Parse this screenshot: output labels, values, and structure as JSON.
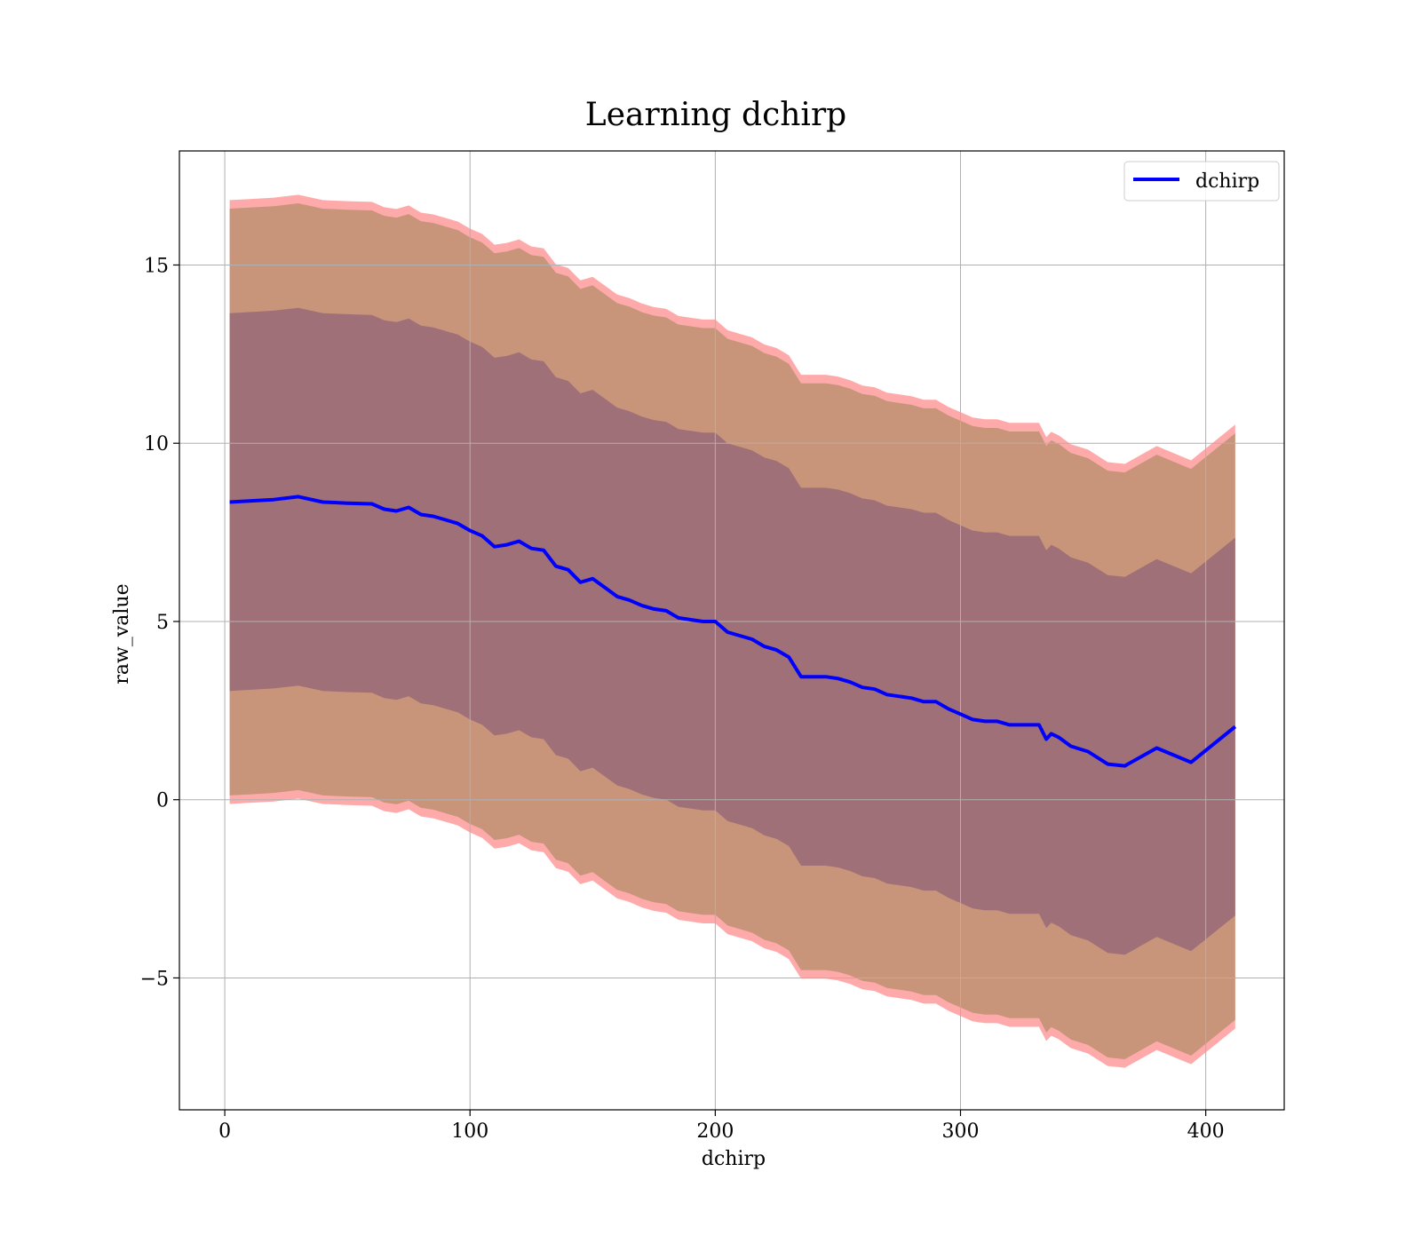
{
  "chart_data": {
    "type": "line",
    "title": "Learning dchirp",
    "xlabel": "dchirp",
    "ylabel": "raw_value",
    "xlim": [
      -18.5,
      432
    ],
    "ylim": [
      -8.7,
      18.2
    ],
    "xticks": [
      0,
      100,
      200,
      300,
      400
    ],
    "yticks": [
      -5,
      0,
      5,
      10,
      15
    ],
    "xtick_labels": [
      "0",
      "100",
      "200",
      "300",
      "400"
    ],
    "ytick_labels": [
      "−5",
      "0",
      "5",
      "10",
      "15"
    ],
    "grid": true,
    "legend": {
      "position": "top-right",
      "entries": [
        "dchirp"
      ]
    },
    "series": [
      {
        "name": "dchirp",
        "color": "#0000ff",
        "x": [
          2,
          10,
          20,
          30,
          40,
          50,
          60,
          65,
          70,
          75,
          80,
          85,
          90,
          95,
          100,
          105,
          110,
          115,
          120,
          125,
          130,
          135,
          140,
          145,
          150,
          155,
          160,
          165,
          170,
          175,
          180,
          185,
          190,
          195,
          200,
          205,
          210,
          215,
          220,
          225,
          230,
          235,
          240,
          245,
          250,
          255,
          260,
          265,
          270,
          275,
          280,
          285,
          290,
          295,
          300,
          305,
          310,
          315,
          320,
          325,
          330,
          332,
          335,
          337,
          340,
          345,
          352,
          360,
          367,
          380,
          394,
          412
        ],
        "values": [
          8.35,
          8.38,
          8.42,
          8.5,
          8.35,
          8.32,
          8.3,
          8.15,
          8.1,
          8.2,
          8.0,
          7.95,
          7.85,
          7.75,
          7.55,
          7.4,
          7.1,
          7.15,
          7.25,
          7.05,
          7.0,
          6.55,
          6.45,
          6.1,
          6.2,
          5.95,
          5.7,
          5.6,
          5.45,
          5.35,
          5.3,
          5.1,
          5.05,
          5.0,
          5.0,
          4.7,
          4.6,
          4.5,
          4.3,
          4.2,
          4.0,
          3.45,
          3.45,
          3.45,
          3.4,
          3.3,
          3.15,
          3.1,
          2.95,
          2.9,
          2.85,
          2.75,
          2.75,
          2.55,
          2.4,
          2.25,
          2.2,
          2.2,
          2.1,
          2.1,
          2.1,
          2.1,
          1.7,
          1.85,
          1.75,
          1.5,
          1.35,
          1.0,
          0.95,
          1.45,
          1.05,
          2.05
        ],
        "band_inner_half_width": 5.3,
        "band_outer_half_width": 8.35
      }
    ],
    "band_colors": {
      "outer": "#ffaaaa",
      "middle": "#c8957a",
      "inner": "#a07078",
      "frame": "#000000",
      "grid": "#b0b0b0"
    }
  }
}
